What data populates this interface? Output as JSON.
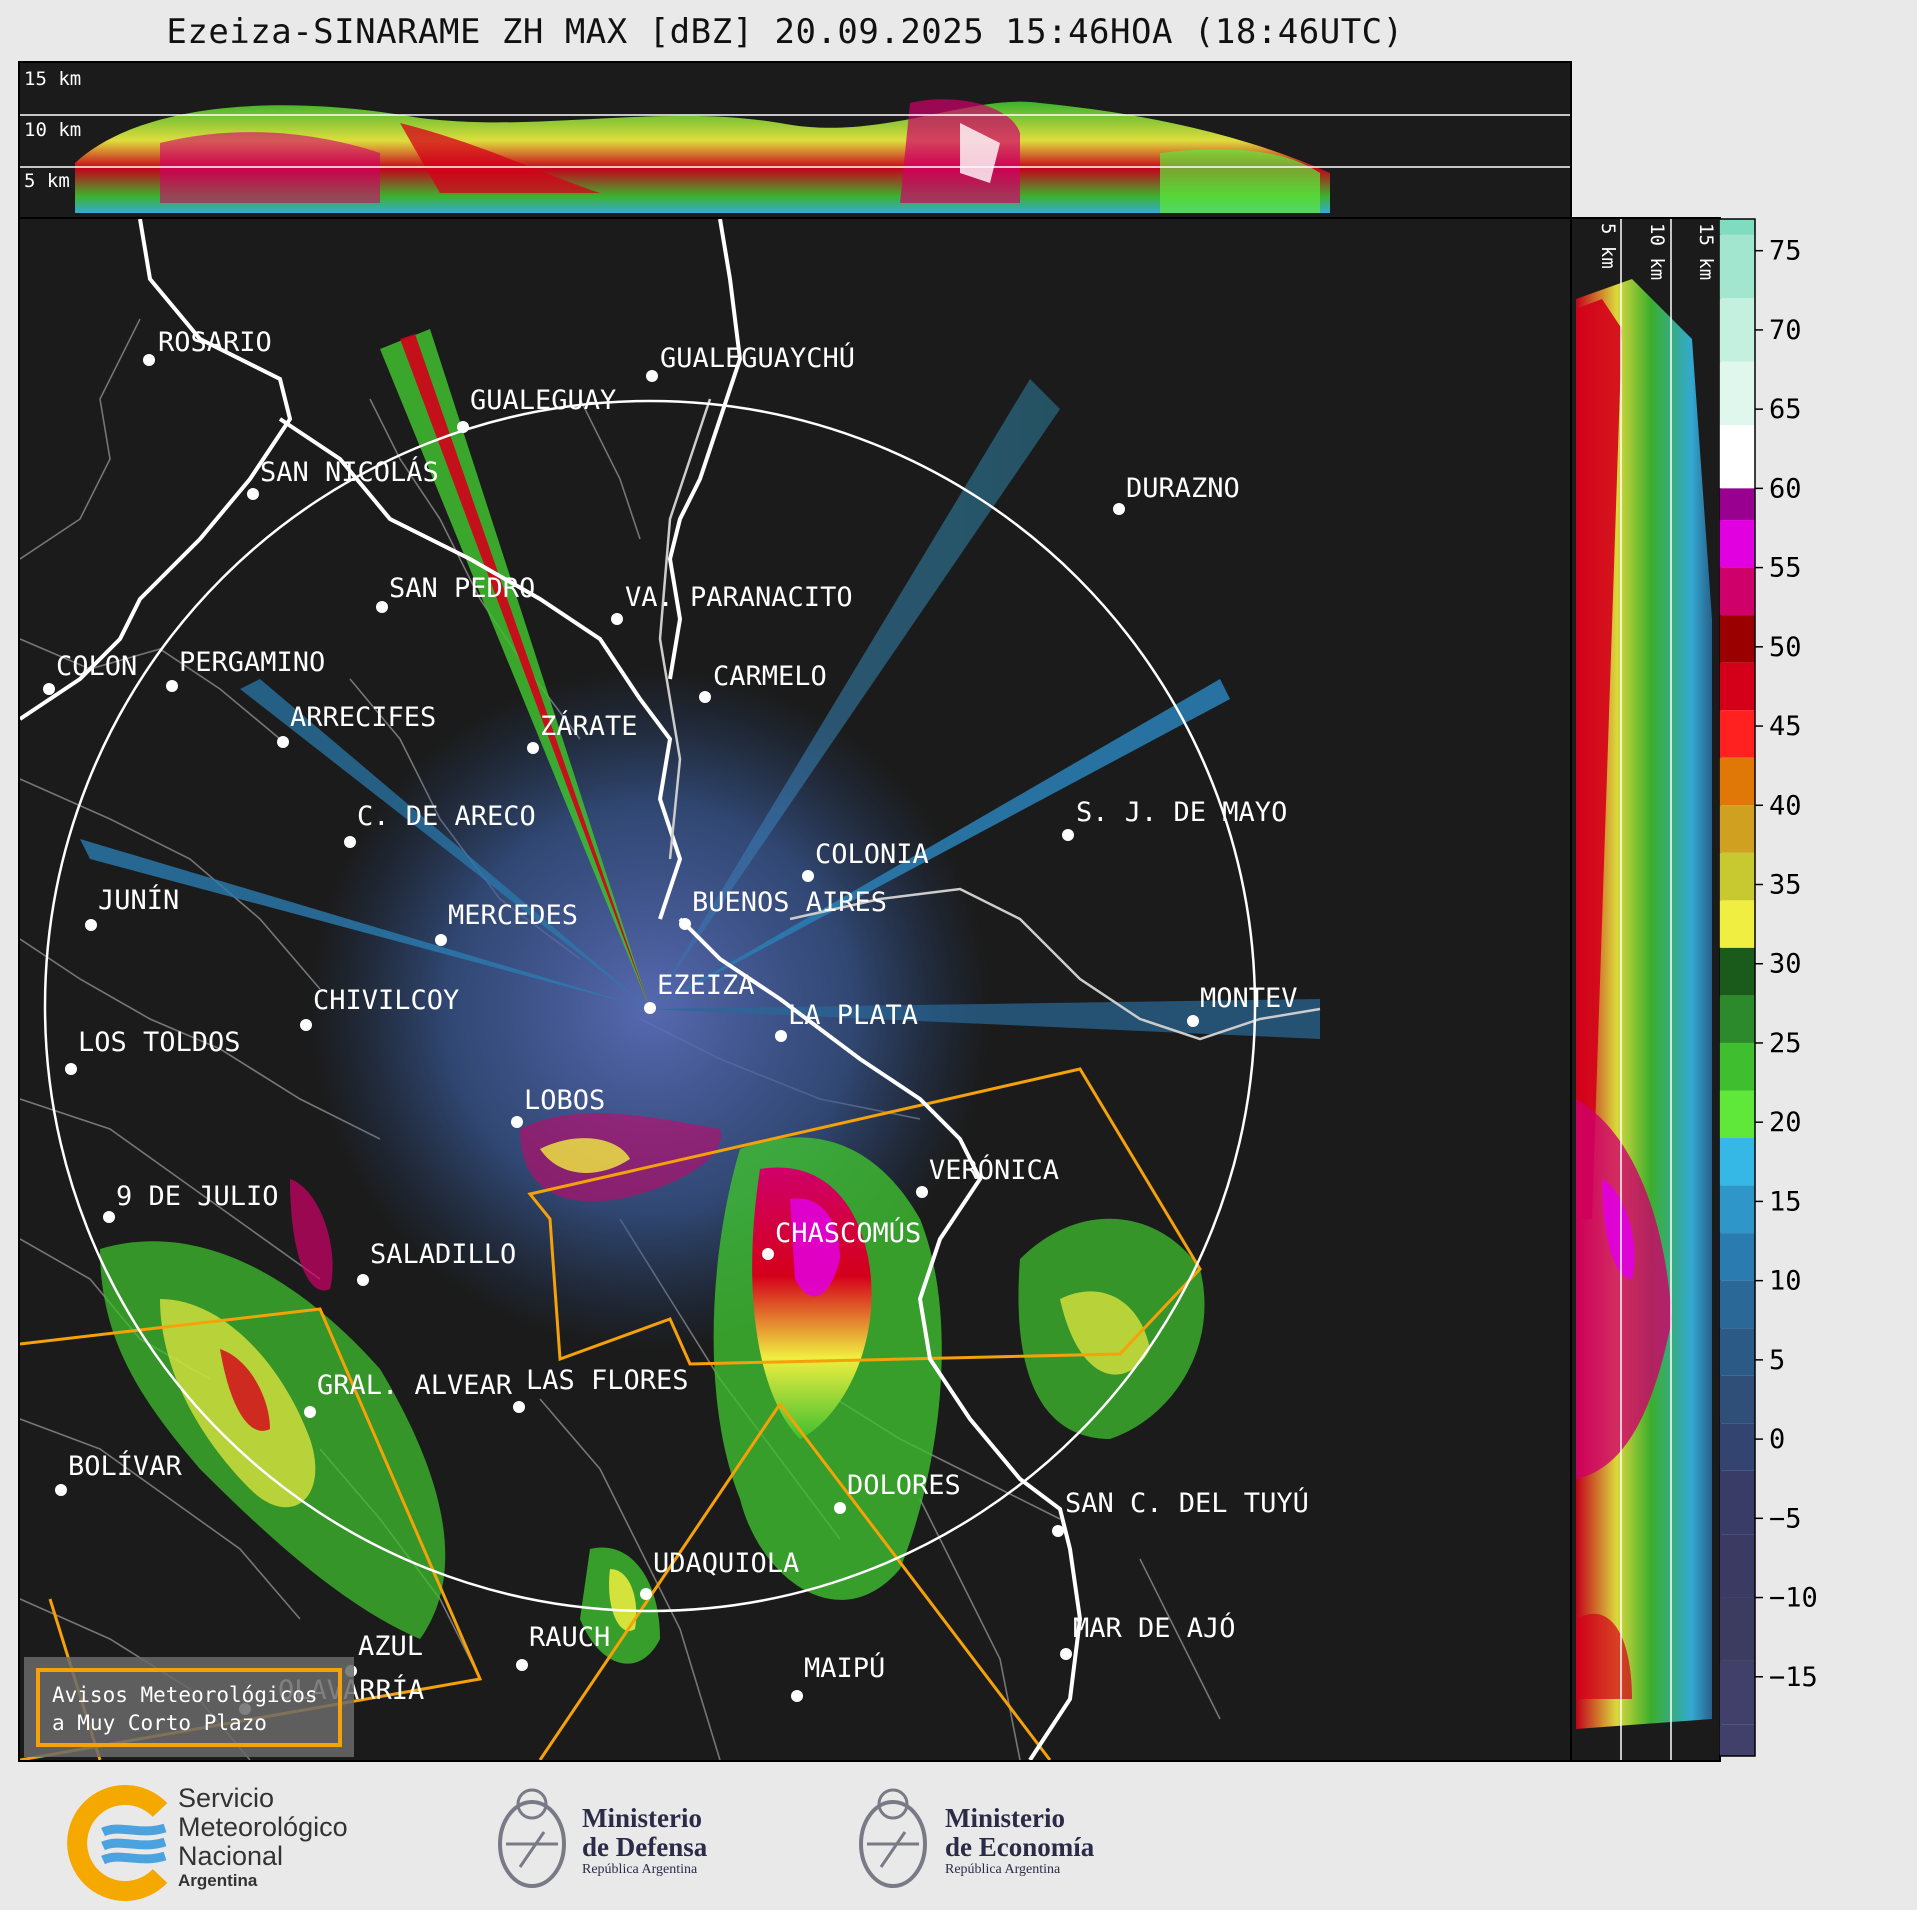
{
  "title": "Ezeiza-SINARAME ZH MAX [dBZ] 20.09.2025 15:46HOA (18:46UTC)",
  "cross_section_labels": [
    "15 km",
    "10 km",
    "5 km"
  ],
  "colorbar": {
    "ticks": [
      "75",
      "70",
      "65",
      "60",
      "55",
      "50",
      "45",
      "40",
      "35",
      "30",
      "25",
      "20",
      "15",
      "10",
      "5",
      "0",
      "−5",
      "−10",
      "−15"
    ],
    "bands": [
      {
        "value": 76,
        "color": "#7fdcc0"
      },
      {
        "value": 72,
        "color": "#a2e6cf"
      },
      {
        "value": 68,
        "color": "#c4f0e0"
      },
      {
        "value": 64,
        "color": "#e0f7ee"
      },
      {
        "value": 60,
        "color": "#ffffff"
      },
      {
        "value": 58,
        "color": "#9a0090"
      },
      {
        "value": 55,
        "color": "#e000e0"
      },
      {
        "value": 52,
        "color": "#d0006a"
      },
      {
        "value": 49,
        "color": "#9a0000"
      },
      {
        "value": 46,
        "color": "#d4001a"
      },
      {
        "value": 43,
        "color": "#ff2020"
      },
      {
        "value": 40,
        "color": "#e07808"
      },
      {
        "value": 37,
        "color": "#d0a020"
      },
      {
        "value": 34,
        "color": "#c8c830"
      },
      {
        "value": 31,
        "color": "#f0ee40"
      },
      {
        "value": 28,
        "color": "#1a5a1a"
      },
      {
        "value": 25,
        "color": "#2c8a2c"
      },
      {
        "value": 22,
        "color": "#3fbf2f"
      },
      {
        "value": 19,
        "color": "#5fe83a"
      },
      {
        "value": 16,
        "color": "#36b8e6"
      },
      {
        "value": 13,
        "color": "#2e96c8"
      },
      {
        "value": 10,
        "color": "#2a7cb0"
      },
      {
        "value": 7,
        "color": "#2a6898"
      },
      {
        "value": 4,
        "color": "#2c5a86"
      },
      {
        "value": 1,
        "color": "#2f4e78"
      },
      {
        "value": -2,
        "color": "#334470"
      },
      {
        "value": -6,
        "color": "#383c66"
      },
      {
        "value": -10,
        "color": "#3a3a62"
      },
      {
        "value": -14,
        "color": "#3c3c60"
      },
      {
        "value": -18,
        "color": "#40406a"
      }
    ],
    "range": [
      -20,
      77
    ]
  },
  "cities": [
    {
      "name": "ROSARIO"
    },
    {
      "name": "GUALEGUAYCHÚ"
    },
    {
      "name": "GUALEGUAY"
    },
    {
      "name": "SAN NICOLÁS"
    },
    {
      "name": "DURAZNO"
    },
    {
      "name": "SAN PEDRO"
    },
    {
      "name": "VA. PARANACITO"
    },
    {
      "name": "COLON"
    },
    {
      "name": "PERGAMINO"
    },
    {
      "name": "CARMELO"
    },
    {
      "name": "ARRECIFES"
    },
    {
      "name": "ZÁRATE"
    },
    {
      "name": "C. DE ARECO"
    },
    {
      "name": "S. J. DE MAYO"
    },
    {
      "name": "COLONIA"
    },
    {
      "name": "JUNÍN"
    },
    {
      "name": "BUENOS AIRES"
    },
    {
      "name": "MERCEDES"
    },
    {
      "name": "EZEIZA"
    },
    {
      "name": "CHIVILCOY"
    },
    {
      "name": "LA PLATA"
    },
    {
      "name": "MONTEV"
    },
    {
      "name": "LOS TOLDOS"
    },
    {
      "name": "LOBOS"
    },
    {
      "name": "VERÓNICA"
    },
    {
      "name": "9 DE JULIO"
    },
    {
      "name": "CHASCOMÚS"
    },
    {
      "name": "SALADILLO"
    },
    {
      "name": "GRAL. ALVEAR"
    },
    {
      "name": "LAS FLORES"
    },
    {
      "name": "BOLÍVAR"
    },
    {
      "name": "DOLORES"
    },
    {
      "name": "SAN C. DEL TUYÚ"
    },
    {
      "name": "UDAQUIOLA"
    },
    {
      "name": "MAR DE AJÓ"
    },
    {
      "name": "AZUL"
    },
    {
      "name": "RAUCH"
    },
    {
      "name": "OLAVARRÍA"
    },
    {
      "name": "MAIPÚ"
    }
  ],
  "legend_box": {
    "line1": "Avisos Meteorológicos",
    "line2": "a Muy Corto Plazo",
    "color": "#f5a10a"
  },
  "colors": {
    "coast": "#ffffff",
    "warning": "#f5a10a",
    "ring": "#ffffff",
    "admin": "#808080",
    "background": "#1b1b1b"
  },
  "footer": {
    "smn": {
      "line1": "Servicio",
      "line2": "Meteorológico",
      "line3": "Nacional",
      "sub": "Argentina"
    },
    "defensa": {
      "line1": "Ministerio",
      "line2": "de Defensa",
      "sub": "República Argentina"
    },
    "economia": {
      "line1": "Ministerio",
      "line2": "de Economía",
      "sub": "República Argentina"
    }
  }
}
